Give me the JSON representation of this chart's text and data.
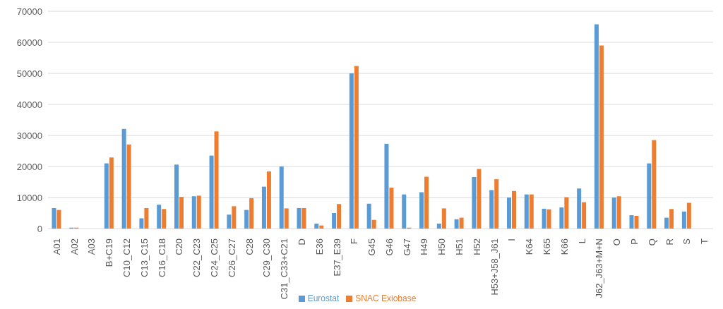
{
  "chart_data": {
    "type": "bar",
    "categories": [
      "A01",
      "A02",
      "A03",
      "B+C19",
      "C10_C12",
      "C13_C15",
      "C16_C18",
      "C20",
      "C22_C23",
      "C24_C25",
      "C26_C27",
      "C28",
      "C29_C30",
      "C31_C33+C21",
      "D",
      "E36",
      "E37_E39",
      "F",
      "G45",
      "G46",
      "G47",
      "H49",
      "H50",
      "H51",
      "H52",
      "H53+J58_J61",
      "I",
      "K64",
      "K65",
      "K66",
      "L",
      "J62_J63+M+N",
      "O",
      "P",
      "Q",
      "R",
      "S",
      "T"
    ],
    "series": [
      {
        "name": "Eurostat",
        "color": "#5b9bd5",
        "values": [
          6600,
          300,
          0,
          21000,
          32100,
          3300,
          7700,
          20600,
          10400,
          23500,
          4500,
          6000,
          13500,
          20000,
          6600,
          1600,
          5000,
          50000,
          8000,
          27300,
          11000,
          11700,
          1600,
          3000,
          16600,
          12400,
          10000,
          11000,
          6400,
          6800,
          12900,
          65800,
          10000,
          4300,
          21000,
          3500,
          5500,
          0
        ]
      },
      {
        "name": "SNAC Exiobase",
        "color": "#ed7d31",
        "values": [
          6000,
          300,
          0,
          22900,
          27100,
          6600,
          6300,
          10200,
          10600,
          31300,
          7200,
          9800,
          18400,
          6500,
          6600,
          1000,
          7900,
          52400,
          2800,
          13200,
          300,
          16700,
          6500,
          3500,
          19200,
          15900,
          12100,
          11000,
          6200,
          10100,
          8500,
          59000,
          10400,
          4100,
          28500,
          6300,
          8300,
          0
        ]
      }
    ],
    "ylim": [
      0,
      70000
    ],
    "yticks": [
      0,
      10000,
      20000,
      30000,
      40000,
      50000,
      60000,
      70000
    ],
    "grid": "y",
    "legend": "bottom"
  }
}
